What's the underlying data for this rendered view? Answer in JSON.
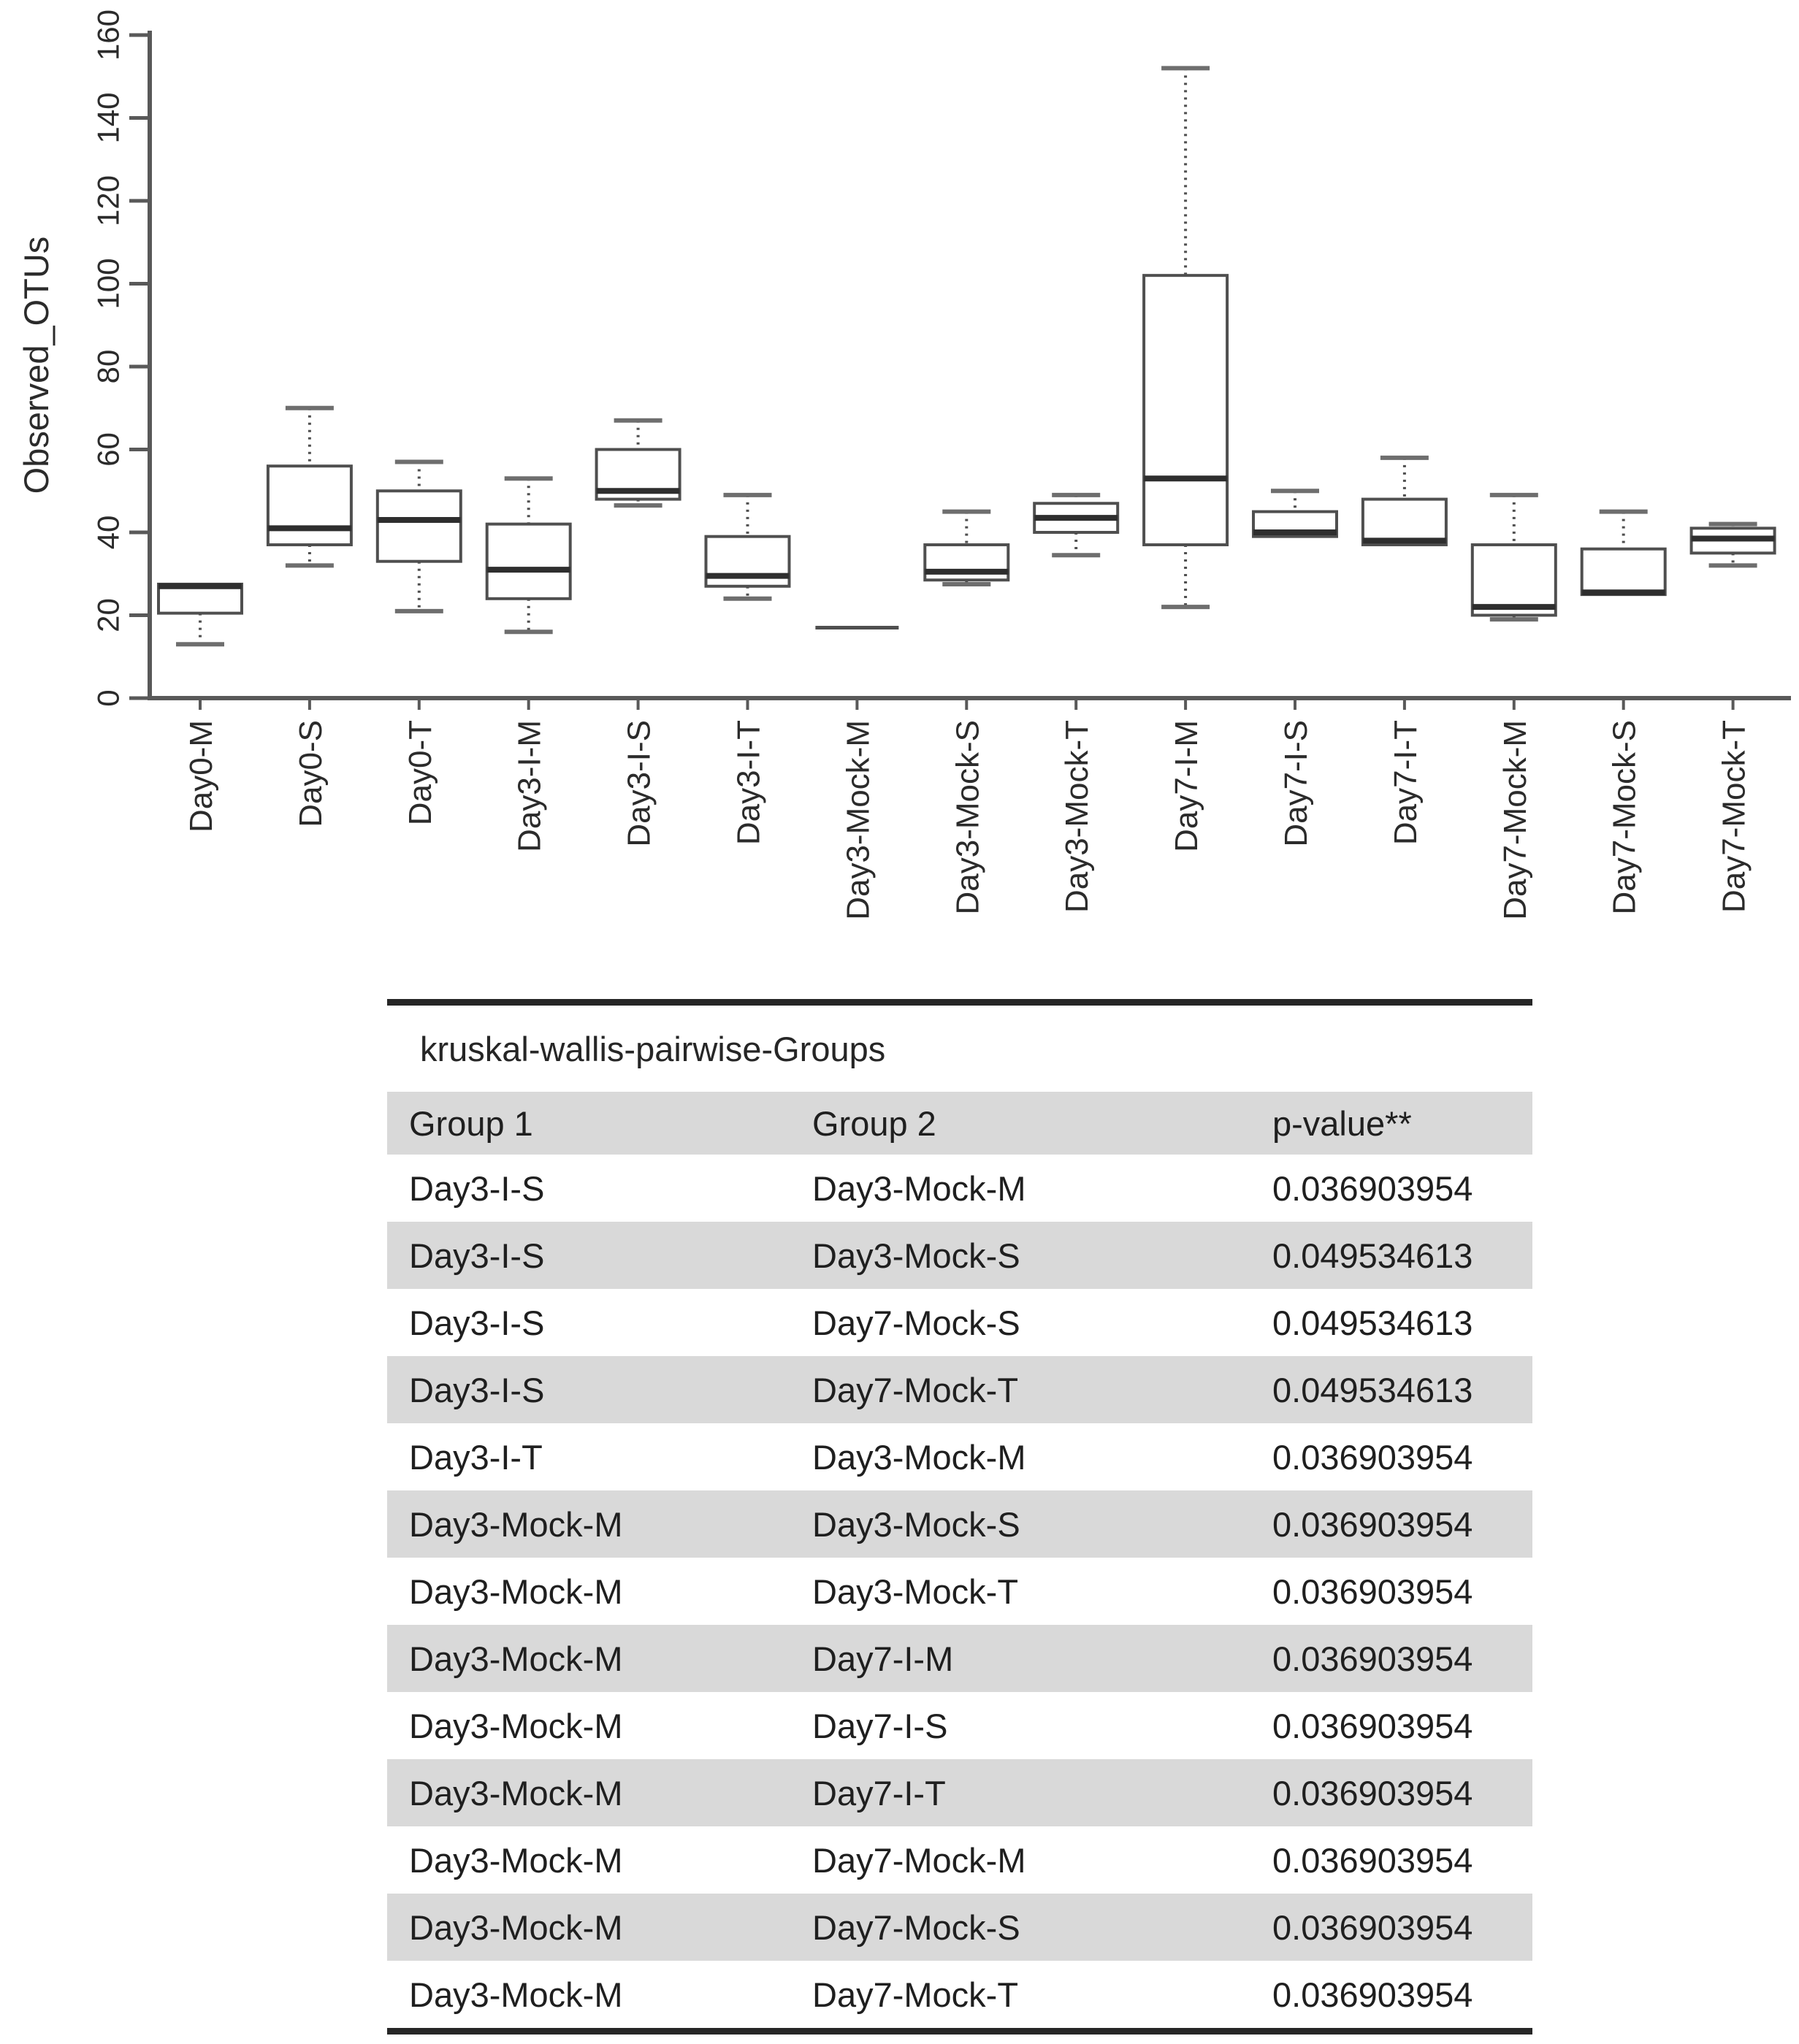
{
  "chart_data": {
    "type": "boxplot",
    "title": "",
    "ylabel": "Observed_OTUs",
    "xlabel": "",
    "ylim": [
      0,
      160
    ],
    "yticks": [
      0,
      20,
      40,
      60,
      80,
      100,
      120,
      140,
      160
    ],
    "grid": false,
    "legend": "none",
    "categories": [
      "Day0-M",
      "Day0-S",
      "Day0-T",
      "Day3-I-M",
      "Day3-I-S",
      "Day3-I-T",
      "Day3-Mock-M",
      "Day3-Mock-S",
      "Day3-Mock-T",
      "Day7-I-M",
      "Day7-I-S",
      "Day7-I-T",
      "Day7-Mock-M",
      "Day7-Mock-S",
      "Day7-Mock-T"
    ],
    "boxes": [
      {
        "category": "Day0-M",
        "low": 13,
        "q1": 20.5,
        "median": 27,
        "q3": 27.5,
        "high": 27.5
      },
      {
        "category": "Day0-S",
        "low": 32,
        "q1": 37,
        "median": 41,
        "q3": 56,
        "high": 70
      },
      {
        "category": "Day0-T",
        "low": 21,
        "q1": 33,
        "median": 43,
        "q3": 50,
        "high": 57
      },
      {
        "category": "Day3-I-M",
        "low": 16,
        "q1": 24,
        "median": 31,
        "q3": 42,
        "high": 53
      },
      {
        "category": "Day3-I-S",
        "low": 46.5,
        "q1": 48,
        "median": 50,
        "q3": 60,
        "high": 67
      },
      {
        "category": "Day3-I-T",
        "low": 24,
        "q1": 27,
        "median": 29.5,
        "q3": 39,
        "high": 49
      },
      {
        "category": "Day3-Mock-M",
        "low": 17,
        "q1": 17,
        "median": 17,
        "q3": 17,
        "high": 17
      },
      {
        "category": "Day3-Mock-S",
        "low": 27.5,
        "q1": 28.5,
        "median": 30.5,
        "q3": 37,
        "high": 45
      },
      {
        "category": "Day3-Mock-T",
        "low": 34.5,
        "q1": 40,
        "median": 43.5,
        "q3": 47,
        "high": 49
      },
      {
        "category": "Day7-I-M",
        "low": 22,
        "q1": 37,
        "median": 53,
        "q3": 102,
        "high": 152
      },
      {
        "category": "Day7-I-S",
        "low": 39,
        "q1": 39,
        "median": 40,
        "q3": 45,
        "high": 50
      },
      {
        "category": "Day7-I-T",
        "low": 37,
        "q1": 37,
        "median": 38,
        "q3": 48,
        "high": 58
      },
      {
        "category": "Day7-Mock-M",
        "low": 19,
        "q1": 20,
        "median": 22,
        "q3": 37,
        "high": 49
      },
      {
        "category": "Day7-Mock-S",
        "low": 25,
        "q1": 25,
        "median": 25.5,
        "q3": 36,
        "high": 45
      },
      {
        "category": "Day7-Mock-T",
        "low": 32,
        "q1": 35,
        "median": 38.5,
        "q3": 41,
        "high": 42
      }
    ]
  },
  "table": {
    "title": "kruskal-wallis-pairwise-Groups",
    "columns": [
      "Group 1",
      "Group 2",
      "p-value**"
    ],
    "rows": [
      [
        "Day3-I-S",
        "Day3-Mock-M",
        "0.036903954"
      ],
      [
        "Day3-I-S",
        "Day3-Mock-S",
        "0.049534613"
      ],
      [
        "Day3-I-S",
        "Day7-Mock-S",
        "0.049534613"
      ],
      [
        "Day3-I-S",
        "Day7-Mock-T",
        "0.049534613"
      ],
      [
        "Day3-I-T",
        "Day3-Mock-M",
        "0.036903954"
      ],
      [
        "Day3-Mock-M",
        "Day3-Mock-S",
        "0.036903954"
      ],
      [
        "Day3-Mock-M",
        "Day3-Mock-T",
        "0.036903954"
      ],
      [
        "Day3-Mock-M",
        "Day7-I-M",
        "0.036903954"
      ],
      [
        "Day3-Mock-M",
        "Day7-I-S",
        "0.036903954"
      ],
      [
        "Day3-Mock-M",
        "Day7-I-T",
        "0.036903954"
      ],
      [
        "Day3-Mock-M",
        "Day7-Mock-M",
        "0.036903954"
      ],
      [
        "Day3-Mock-M",
        "Day7-Mock-S",
        "0.036903954"
      ],
      [
        "Day3-Mock-M",
        "Day7-Mock-T",
        "0.036903954"
      ]
    ],
    "shaded_row_indexes": [
      1,
      3,
      5,
      7,
      9,
      11
    ]
  },
  "colors": {
    "axis": "#595959",
    "box_stroke": "#4f4f4f",
    "median": "#2e2e2e",
    "whisker": "#4f4f4f",
    "whisker_cap": "#6e6e6e",
    "tick_text": "#2b2b2b",
    "row_shade": "#d9d9d9",
    "table_border": "#262626",
    "text": "#1f1f1f"
  }
}
